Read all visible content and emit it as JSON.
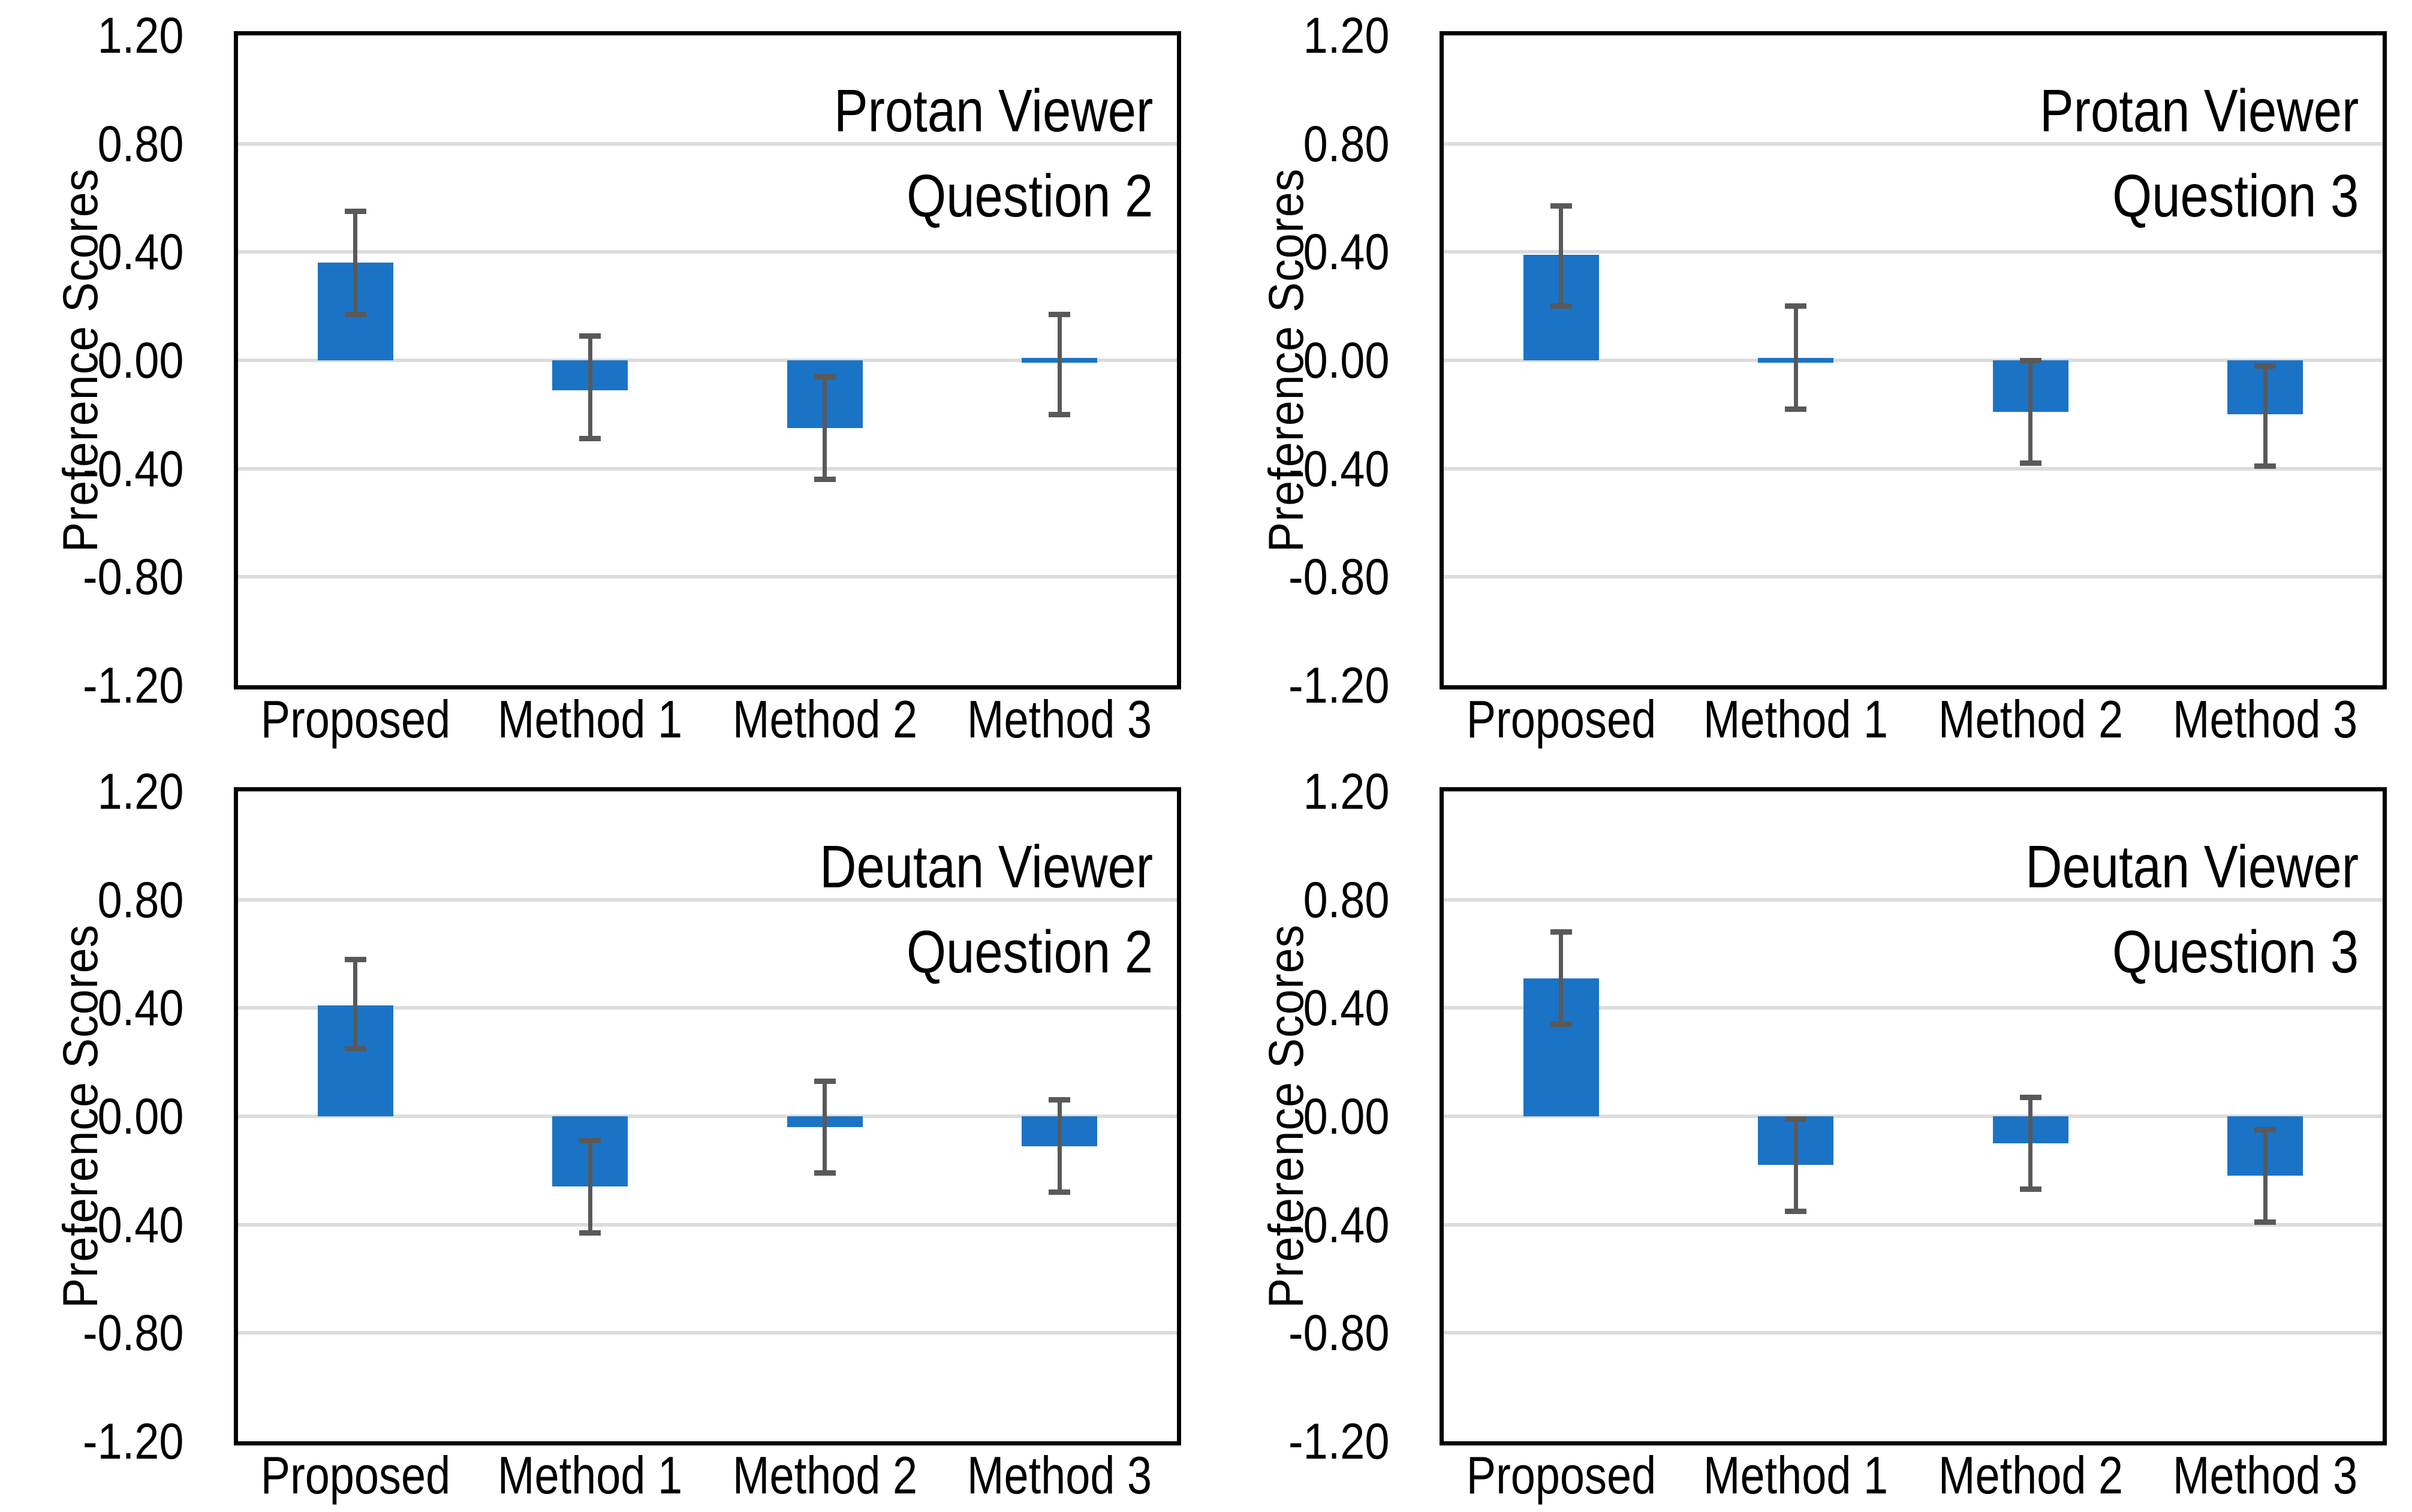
{
  "figure": {
    "ylabel": "Preference Scores",
    "ytick_labels": [
      "1.20",
      "0.80",
      "0.40",
      "0.00",
      "-0.40",
      "-0.80",
      "-1.20"
    ]
  },
  "colors": {
    "bar": "#1b73c6",
    "error_bar": "#595959",
    "gridline": "#dcdcdc",
    "plot_border": "#000000",
    "background": "#ffffff",
    "text": "#000000"
  },
  "chart_data": [
    {
      "type": "bar",
      "position": "top-left",
      "title_line1": "Protan Viewer",
      "title_line2": "Question 2",
      "ylabel": "Preference Scores",
      "categories": [
        "Proposed",
        "Method 1",
        "Method 2",
        "Method 3"
      ],
      "values": [
        0.36,
        -0.11,
        -0.25,
        0.0
      ],
      "error_high": [
        0.55,
        0.09,
        -0.06,
        0.17
      ],
      "error_low": [
        0.17,
        -0.29,
        -0.44,
        -0.2
      ],
      "ylim": [
        -1.2,
        1.2
      ],
      "ytick_step": 0.4,
      "grid": true,
      "legend": "none"
    },
    {
      "type": "bar",
      "position": "top-right",
      "title_line1": "Protan Viewer",
      "title_line2": "Question 3",
      "ylabel": "Preference Scores",
      "categories": [
        "Proposed",
        "Method 1",
        "Method 2",
        "Method 3"
      ],
      "values": [
        0.39,
        0.01,
        -0.19,
        -0.2
      ],
      "error_high": [
        0.57,
        0.2,
        0.0,
        -0.02
      ],
      "error_low": [
        0.2,
        -0.18,
        -0.38,
        -0.39
      ],
      "ylim": [
        -1.2,
        1.2
      ],
      "ytick_step": 0.4,
      "grid": true,
      "legend": "none"
    },
    {
      "type": "bar",
      "position": "bottom-left",
      "title_line1": "Deutan Viewer",
      "title_line2": "Question 2",
      "ylabel": "Preference Scores",
      "categories": [
        "Proposed",
        "Method 1",
        "Method 2",
        "Method 3"
      ],
      "values": [
        0.41,
        -0.26,
        -0.04,
        -0.11
      ],
      "error_high": [
        0.58,
        -0.09,
        0.13,
        0.06
      ],
      "error_low": [
        0.25,
        -0.43,
        -0.21,
        -0.28
      ],
      "ylim": [
        -1.2,
        1.2
      ],
      "ytick_step": 0.4,
      "grid": true,
      "legend": "none"
    },
    {
      "type": "bar",
      "position": "bottom-right",
      "title_line1": "Deutan Viewer",
      "title_line2": "Question 3",
      "ylabel": "Preference Scores",
      "categories": [
        "Proposed",
        "Method 1",
        "Method 2",
        "Method 3"
      ],
      "values": [
        0.51,
        -0.18,
        -0.1,
        -0.22
      ],
      "error_high": [
        0.68,
        -0.01,
        0.07,
        -0.05
      ],
      "error_low": [
        0.34,
        -0.35,
        -0.27,
        -0.39
      ],
      "ylim": [
        -1.2,
        1.2
      ],
      "ytick_step": 0.4,
      "grid": true,
      "legend": "none"
    }
  ]
}
